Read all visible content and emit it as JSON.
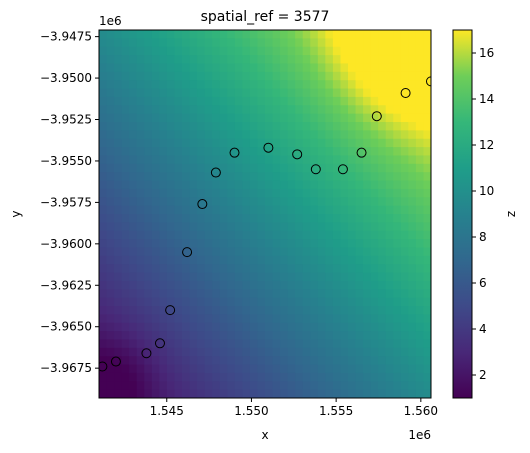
{
  "chart_data": {
    "type": "heatmap",
    "title": "spatial_ref = 3577",
    "xlabel": "x",
    "ylabel": "y",
    "x_offset_label": "1e6",
    "y_offset_label": "1e6",
    "xlim": [
      1.541,
      1.5606
    ],
    "ylim": [
      -3.9693,
      -3.9471
    ],
    "x_ticks": [
      1.545,
      1.55,
      1.555,
      1.56
    ],
    "x_tick_labels": [
      "1.545",
      "1.550",
      "1.555",
      "1.560"
    ],
    "y_ticks": [
      -3.9475,
      -3.95,
      -3.9525,
      -3.955,
      -3.9575,
      -3.96,
      -3.9625,
      -3.965,
      -3.9675
    ],
    "y_tick_labels": [
      "−3.9475",
      "−3.9500",
      "−3.9525",
      "−3.9550",
      "−3.9575",
      "−3.9600",
      "−3.9625",
      "−3.9650",
      "−3.9675"
    ],
    "colorbar": {
      "label": "z",
      "colormap": "viridis",
      "range": [
        1.0,
        17.0
      ],
      "ticks": [
        2,
        4,
        6,
        8,
        10,
        12,
        14,
        16
      ],
      "tick_labels": [
        "2",
        "4",
        "6",
        "8",
        "10",
        "12",
        "14",
        "16"
      ]
    },
    "points": [
      {
        "x": 1.5412,
        "y": -3.9674
      },
      {
        "x": 1.542,
        "y": -3.9671
      },
      {
        "x": 1.5438,
        "y": -3.9666
      },
      {
        "x": 1.5446,
        "y": -3.966
      },
      {
        "x": 1.5452,
        "y": -3.964
      },
      {
        "x": 1.5462,
        "y": -3.9605
      },
      {
        "x": 1.5471,
        "y": -3.9576
      },
      {
        "x": 1.5479,
        "y": -3.9557
      },
      {
        "x": 1.549,
        "y": -3.9545
      },
      {
        "x": 1.551,
        "y": -3.9542
      },
      {
        "x": 1.5527,
        "y": -3.9546
      },
      {
        "x": 1.5538,
        "y": -3.9555
      },
      {
        "x": 1.5554,
        "y": -3.9555
      },
      {
        "x": 1.5565,
        "y": -3.9545
      },
      {
        "x": 1.5574,
        "y": -3.9523
      },
      {
        "x": 1.5591,
        "y": -3.9509
      },
      {
        "x": 1.5606,
        "y": -3.9502
      }
    ],
    "marker_style": "open-circle",
    "grid": false
  }
}
